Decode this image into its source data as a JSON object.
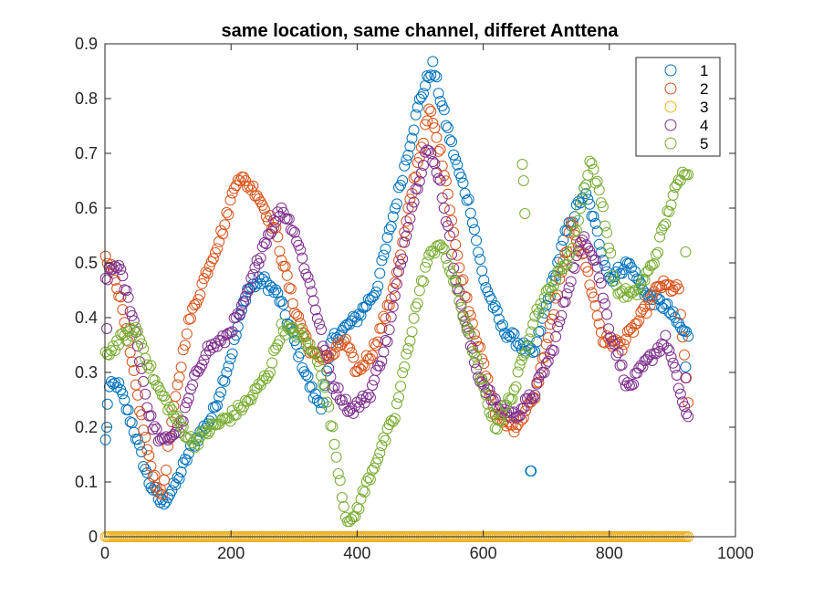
{
  "chart_data": {
    "type": "scatter",
    "title": "same location, same channel, differet Anttena",
    "xlabel": "",
    "ylabel": "",
    "xlim": [
      0,
      1000
    ],
    "ylim": [
      0,
      0.9
    ],
    "xticks": [
      "0",
      "200",
      "400",
      "600",
      "800",
      "1000"
    ],
    "yticks": [
      "0",
      "0.1",
      "0.2",
      "0.3",
      "0.4",
      "0.5",
      "0.6",
      "0.7",
      "0.8",
      "0.9"
    ],
    "grid": false,
    "legend_position": "top-right",
    "marker": "open-circle",
    "x_range_samples": [
      1,
      925
    ],
    "series": [
      {
        "name": "1",
        "color": "#0072BD",
        "keypoints": [
          [
            0,
            0.15
          ],
          [
            5,
            0.27
          ],
          [
            20,
            0.28
          ],
          [
            45,
            0.2
          ],
          [
            70,
            0.1
          ],
          [
            90,
            0.06
          ],
          [
            110,
            0.09
          ],
          [
            140,
            0.17
          ],
          [
            170,
            0.22
          ],
          [
            200,
            0.33
          ],
          [
            225,
            0.45
          ],
          [
            250,
            0.47
          ],
          [
            275,
            0.44
          ],
          [
            300,
            0.36
          ],
          [
            330,
            0.26
          ],
          [
            345,
            0.24
          ],
          [
            360,
            0.36
          ],
          [
            400,
            0.4
          ],
          [
            430,
            0.45
          ],
          [
            460,
            0.6
          ],
          [
            480,
            0.7
          ],
          [
            500,
            0.8
          ],
          [
            520,
            0.86
          ],
          [
            540,
            0.76
          ],
          [
            560,
            0.67
          ],
          [
            580,
            0.6
          ],
          [
            600,
            0.47
          ],
          [
            630,
            0.38
          ],
          [
            660,
            0.35
          ],
          [
            680,
            0.33
          ],
          [
            700,
            0.42
          ],
          [
            730,
            0.55
          ],
          [
            760,
            0.63
          ],
          [
            770,
            0.6
          ],
          [
            800,
            0.47
          ],
          [
            830,
            0.5
          ],
          [
            860,
            0.44
          ],
          [
            890,
            0.42
          ],
          [
            920,
            0.37
          ]
        ]
      },
      {
        "name": "2",
        "color": "#D95319",
        "keypoints": [
          [
            0,
            0.52
          ],
          [
            20,
            0.46
          ],
          [
            45,
            0.3
          ],
          [
            70,
            0.14
          ],
          [
            90,
            0.07
          ],
          [
            105,
            0.2
          ],
          [
            130,
            0.38
          ],
          [
            160,
            0.48
          ],
          [
            190,
            0.57
          ],
          [
            210,
            0.66
          ],
          [
            240,
            0.63
          ],
          [
            270,
            0.56
          ],
          [
            300,
            0.42
          ],
          [
            330,
            0.33
          ],
          [
            360,
            0.33
          ],
          [
            380,
            0.36
          ],
          [
            400,
            0.3
          ],
          [
            425,
            0.34
          ],
          [
            450,
            0.42
          ],
          [
            470,
            0.52
          ],
          [
            490,
            0.65
          ],
          [
            515,
            0.78
          ],
          [
            540,
            0.66
          ],
          [
            560,
            0.5
          ],
          [
            590,
            0.36
          ],
          [
            620,
            0.22
          ],
          [
            650,
            0.2
          ],
          [
            680,
            0.25
          ],
          [
            710,
            0.4
          ],
          [
            740,
            0.57
          ],
          [
            760,
            0.51
          ],
          [
            790,
            0.36
          ],
          [
            820,
            0.35
          ],
          [
            850,
            0.4
          ],
          [
            880,
            0.46
          ],
          [
            910,
            0.45
          ],
          [
            925,
            0.24
          ]
        ]
      },
      {
        "name": "3",
        "color": "#EDB120",
        "keypoints": [
          [
            0,
            0
          ],
          [
            925,
            0
          ]
        ]
      },
      {
        "name": "4",
        "color": "#7E2F8E",
        "keypoints": [
          [
            0,
            0.47
          ],
          [
            20,
            0.5
          ],
          [
            45,
            0.4
          ],
          [
            70,
            0.22
          ],
          [
            90,
            0.17
          ],
          [
            120,
            0.2
          ],
          [
            140,
            0.28
          ],
          [
            160,
            0.34
          ],
          [
            190,
            0.36
          ],
          [
            220,
            0.42
          ],
          [
            250,
            0.53
          ],
          [
            280,
            0.6
          ],
          [
            300,
            0.56
          ],
          [
            330,
            0.44
          ],
          [
            360,
            0.28
          ],
          [
            390,
            0.23
          ],
          [
            420,
            0.26
          ],
          [
            450,
            0.37
          ],
          [
            480,
            0.57
          ],
          [
            510,
            0.71
          ],
          [
            530,
            0.66
          ],
          [
            560,
            0.45
          ],
          [
            590,
            0.3
          ],
          [
            620,
            0.24
          ],
          [
            650,
            0.22
          ],
          [
            680,
            0.26
          ],
          [
            710,
            0.34
          ],
          [
            740,
            0.48
          ],
          [
            760,
            0.55
          ],
          [
            780,
            0.5
          ],
          [
            800,
            0.38
          ],
          [
            830,
            0.27
          ],
          [
            860,
            0.32
          ],
          [
            890,
            0.36
          ],
          [
            925,
            0.21
          ]
        ]
      },
      {
        "name": "5",
        "color": "#77AC30",
        "keypoints": [
          [
            0,
            0.33
          ],
          [
            25,
            0.36
          ],
          [
            50,
            0.38
          ],
          [
            80,
            0.28
          ],
          [
            110,
            0.22
          ],
          [
            140,
            0.17
          ],
          [
            170,
            0.2
          ],
          [
            200,
            0.22
          ],
          [
            230,
            0.25
          ],
          [
            260,
            0.3
          ],
          [
            280,
            0.38
          ],
          [
            310,
            0.37
          ],
          [
            340,
            0.32
          ],
          [
            360,
            0.2
          ],
          [
            380,
            0.05
          ],
          [
            390,
            0.02
          ],
          [
            410,
            0.08
          ],
          [
            430,
            0.14
          ],
          [
            460,
            0.22
          ],
          [
            490,
            0.4
          ],
          [
            510,
            0.5
          ],
          [
            530,
            0.54
          ],
          [
            550,
            0.48
          ],
          [
            580,
            0.36
          ],
          [
            600,
            0.27
          ],
          [
            620,
            0.2
          ],
          [
            650,
            0.27
          ],
          [
            680,
            0.4
          ],
          [
            710,
            0.46
          ],
          [
            740,
            0.52
          ],
          [
            770,
            0.69
          ],
          [
            790,
            0.6
          ],
          [
            810,
            0.45
          ],
          [
            840,
            0.44
          ],
          [
            870,
            0.5
          ],
          [
            900,
            0.62
          ],
          [
            920,
            0.67
          ]
        ]
      }
    ],
    "outliers": [
      {
        "series": "1",
        "points": [
          [
            675,
            0.12
          ],
          [
            676,
            0.12
          ],
          [
            3,
            0.2
          ],
          [
            921,
            0.31
          ]
        ]
      },
      {
        "series": "4",
        "points": [
          [
            3,
            0.38
          ],
          [
            921,
            0.29
          ]
        ]
      },
      {
        "series": "5",
        "points": [
          [
            662,
            0.68
          ],
          [
            664,
            0.65
          ],
          [
            666,
            0.59
          ],
          [
            921,
            0.52
          ]
        ]
      }
    ]
  }
}
